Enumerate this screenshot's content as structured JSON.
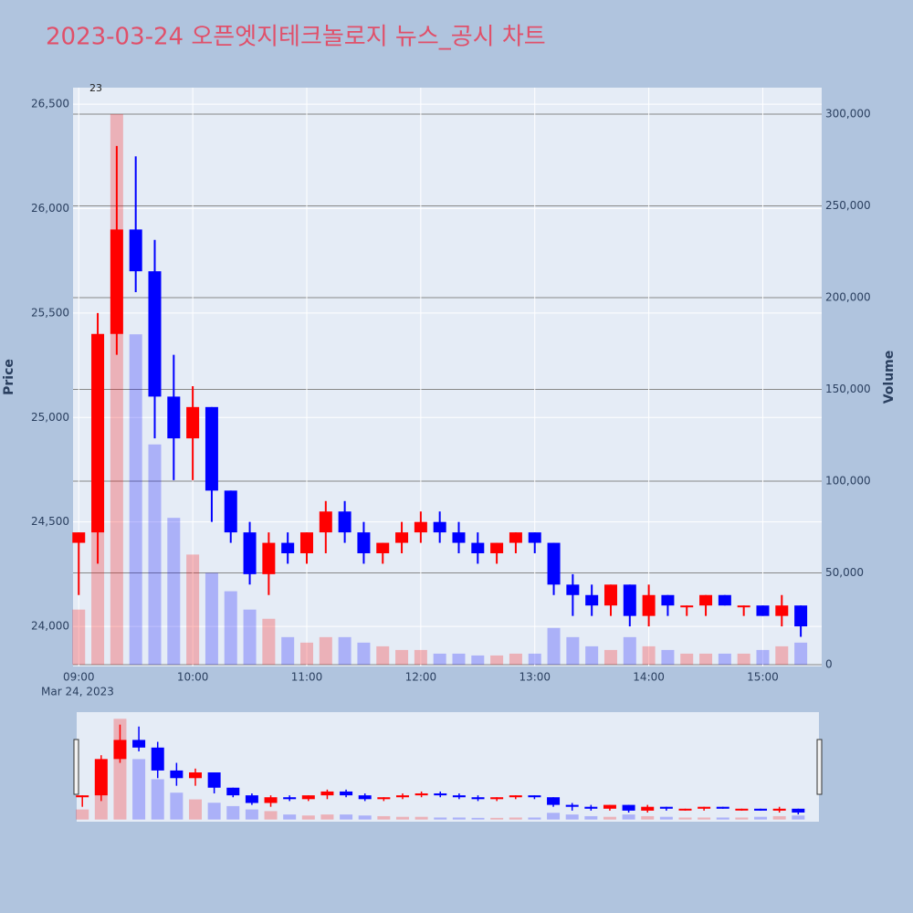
{
  "chart_data": {
    "type": "candlestick",
    "title": "2023-03-24 오픈엣지테크놀로지 뉴스_공시 차트",
    "y_label": "Price",
    "y2_label": "Volume",
    "x": [
      "2023-03-24 09:00",
      "2023-03-24 09:10",
      "2023-03-24 09:20",
      "2023-03-24 09:30",
      "2023-03-24 09:40",
      "2023-03-24 09:50",
      "2023-03-24 10:00",
      "2023-03-24 10:10",
      "2023-03-24 10:20",
      "2023-03-24 10:30",
      "2023-03-24 10:40",
      "2023-03-24 10:50",
      "2023-03-24 11:00",
      "2023-03-24 11:10",
      "2023-03-24 11:20",
      "2023-03-24 11:30",
      "2023-03-24 11:40",
      "2023-03-24 11:50",
      "2023-03-24 12:00",
      "2023-03-24 12:10",
      "2023-03-24 12:20",
      "2023-03-24 12:30",
      "2023-03-24 12:40",
      "2023-03-24 12:50",
      "2023-03-24 13:00",
      "2023-03-24 13:10",
      "2023-03-24 13:20",
      "2023-03-24 13:30",
      "2023-03-24 13:40",
      "2023-03-24 13:50",
      "2023-03-24 14:00",
      "2023-03-24 14:10",
      "2023-03-24 14:20",
      "2023-03-24 14:30",
      "2023-03-24 14:40",
      "2023-03-24 14:50",
      "2023-03-24 15:00",
      "2023-03-24 15:10",
      "2023-03-24 15:20"
    ],
    "open": [
      24400,
      24450,
      25400,
      25900,
      25700,
      25100,
      24900,
      25050,
      24650,
      24450,
      24250,
      24400,
      24350,
      24450,
      24550,
      24450,
      24350,
      24400,
      24450,
      24500,
      24450,
      24400,
      24350,
      24400,
      24450,
      24400,
      24200,
      24150,
      24100,
      24200,
      24050,
      24150,
      24100,
      24100,
      24150,
      24100,
      24100,
      24050,
      24100
    ],
    "high": [
      24450,
      25500,
      26300,
      26250,
      25850,
      25300,
      25150,
      25050,
      24650,
      24500,
      24450,
      24450,
      24450,
      24600,
      24600,
      24500,
      24400,
      24500,
      24550,
      24550,
      24500,
      24450,
      24400,
      24450,
      24450,
      24400,
      24250,
      24200,
      24200,
      24200,
      24200,
      24150,
      24100,
      24150,
      24150,
      24100,
      24100,
      24150,
      24100
    ],
    "low": [
      24150,
      24300,
      25300,
      25600,
      24900,
      24700,
      24700,
      24500,
      24400,
      24200,
      24150,
      24300,
      24300,
      24350,
      24400,
      24300,
      24300,
      24350,
      24400,
      24400,
      24350,
      24300,
      24300,
      24350,
      24350,
      24150,
      24050,
      24050,
      24050,
      24000,
      24000,
      24050,
      24050,
      24050,
      24100,
      24050,
      24050,
      24000,
      23950
    ],
    "close": [
      24450,
      25400,
      25900,
      25700,
      25100,
      24900,
      25050,
      24650,
      24450,
      24250,
      24400,
      24350,
      24450,
      24550,
      24450,
      24350,
      24400,
      24450,
      24500,
      24450,
      24400,
      24350,
      24400,
      24450,
      24400,
      24200,
      24150,
      24100,
      24200,
      24050,
      24150,
      24100,
      24100,
      24150,
      24100,
      24100,
      24050,
      24100,
      24000
    ],
    "volume": [
      30000,
      150000,
      300000,
      180000,
      120000,
      80000,
      60000,
      50000,
      40000,
      30000,
      25000,
      15000,
      12000,
      15000,
      15000,
      12000,
      10000,
      8000,
      8000,
      6000,
      6000,
      5000,
      5000,
      6000,
      6000,
      20000,
      15000,
      10000,
      8000,
      15000,
      10000,
      8000,
      6000,
      6000,
      6000,
      6000,
      8000,
      10000,
      12000
    ],
    "increasing_color": "#ff0000",
    "decreasing_color": "#0000ff",
    "annotation": {
      "text": "23",
      "x": "2023-03-24 09:10"
    },
    "xlim": [
      "2023-03-24 08:57",
      "2023-03-24 15:31"
    ],
    "xticks": [
      {
        "value": "2023-03-24 09:00",
        "label": "09:00"
      },
      {
        "value": "2023-03-24 10:00",
        "label": "10:00"
      },
      {
        "value": "2023-03-24 11:00",
        "label": "11:00"
      },
      {
        "value": "2023-03-24 12:00",
        "label": "12:00"
      },
      {
        "value": "2023-03-24 13:00",
        "label": "13:00"
      },
      {
        "value": "2023-03-24 14:00",
        "label": "14:00"
      },
      {
        "value": "2023-03-24 15:00",
        "label": "15:00"
      }
    ],
    "x_date_label": "Mar 24, 2023",
    "ylim": [
      23808,
      26579
    ],
    "yticks": [
      {
        "value": 24000,
        "label": "24,000"
      },
      {
        "value": 24500,
        "label": "24,500"
      },
      {
        "value": 25000,
        "label": "25,000"
      },
      {
        "value": 25500,
        "label": "25,500"
      },
      {
        "value": 26000,
        "label": "26,000"
      },
      {
        "value": 26500,
        "label": "26,500"
      }
    ],
    "y2lim": [
      -1000,
      314400
    ],
    "y2ticks": [
      0,
      {
        "value": 50000,
        "label": "50,000"
      },
      {
        "value": 100000,
        "label": "100,000"
      },
      {
        "value": 150000,
        "label": "150,000"
      },
      {
        "value": 200000,
        "label": "200,000"
      },
      {
        "value": 250000,
        "label": "250,000"
      },
      {
        "value": 300000,
        "label": "300,000"
      }
    ],
    "grid": true
  }
}
